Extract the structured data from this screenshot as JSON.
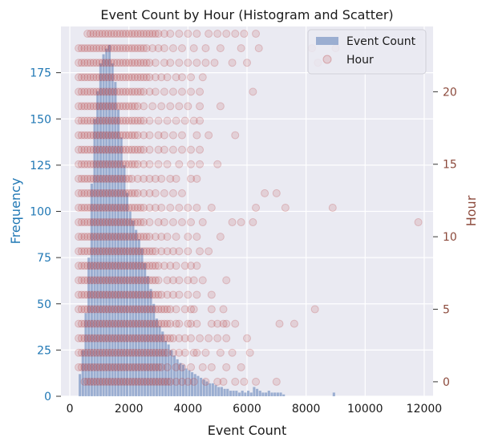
{
  "chart_data": {
    "type": "bar+scatter",
    "title": "Event Count by Hour (Histogram and Scatter)",
    "xlabel": "Event Count",
    "ylabel_left": "Frequency",
    "ylabel_right": "Hour",
    "xlim": [
      -300,
      12300
    ],
    "ylim_left": [
      0,
      200
    ],
    "ylim_right": [
      -1,
      24.5
    ],
    "x_ticks": [
      0,
      2000,
      4000,
      6000,
      8000,
      10000,
      12000
    ],
    "x_tick_labels": [
      "0",
      "2000",
      "4000",
      "6000",
      "8000",
      "10000",
      "12000"
    ],
    "y_left_ticks": [
      0,
      25,
      50,
      75,
      100,
      125,
      150,
      175
    ],
    "y_left_tick_labels": [
      "0",
      "25",
      "50",
      "75",
      "100",
      "125",
      "150",
      "175"
    ],
    "y_right_ticks": [
      0,
      5,
      10,
      15,
      20
    ],
    "y_right_tick_labels": [
      "0",
      "5",
      "10",
      "15",
      "20"
    ],
    "grid": true,
    "legend": {
      "position": "top-right",
      "entries": [
        {
          "label": "Event Count",
          "kind": "bar"
        },
        {
          "label": "Hour",
          "kind": "scatter"
        }
      ]
    },
    "histogram": {
      "name": "Event Count",
      "bin_width": 100,
      "bin_starts": [
        300,
        400,
        500,
        600,
        700,
        800,
        900,
        1000,
        1100,
        1200,
        1300,
        1400,
        1500,
        1600,
        1700,
        1800,
        1900,
        2000,
        2100,
        2200,
        2300,
        2400,
        2500,
        2600,
        2700,
        2800,
        2900,
        3000,
        3100,
        3200,
        3300,
        3400,
        3500,
        3600,
        3700,
        3800,
        3900,
        4000,
        4100,
        4200,
        4300,
        4400,
        4500,
        4600,
        4700,
        4800,
        4900,
        5000,
        5100,
        5200,
        5300,
        5400,
        5500,
        5600,
        5700,
        5800,
        5900,
        6000,
        6100,
        6200,
        6300,
        6400,
        6500,
        6600,
        6700,
        6800,
        6900,
        7000,
        7100,
        7200,
        8900
      ],
      "counts": [
        12,
        25,
        45,
        75,
        115,
        150,
        165,
        180,
        185,
        188,
        190,
        180,
        170,
        155,
        140,
        125,
        110,
        100,
        95,
        90,
        85,
        80,
        72,
        65,
        58,
        50,
        42,
        38,
        35,
        30,
        28,
        25,
        22,
        20,
        18,
        17,
        15,
        14,
        13,
        12,
        11,
        10,
        9,
        8,
        7,
        7,
        6,
        5,
        5,
        4,
        4,
        3,
        3,
        3,
        2,
        3,
        2,
        3,
        2,
        5,
        4,
        3,
        2,
        2,
        3,
        2,
        2,
        2,
        2,
        1,
        2
      ]
    },
    "scatter": {
      "name": "Hour",
      "rows": [
        {
          "hour": 0,
          "x_min": 500,
          "x_max": 3300,
          "extra": [
            3400,
            3600,
            3800,
            4000,
            4200,
            4600,
            5000,
            5200,
            5600,
            5900,
            6300,
            7000
          ]
        },
        {
          "hour": 1,
          "x_min": 300,
          "x_max": 3100,
          "extra": [
            3300,
            3600,
            3800,
            4100,
            4500,
            4800,
            5300,
            5800
          ]
        },
        {
          "hour": 2,
          "x_min": 300,
          "x_max": 3200,
          "extra": [
            3300,
            3500,
            3700,
            3900,
            4200,
            4300,
            4600,
            5100,
            5500,
            6100
          ]
        },
        {
          "hour": 3,
          "x_min": 300,
          "x_max": 3500,
          "extra": [
            3700,
            3900,
            4100,
            4400,
            4700,
            5000,
            5300,
            6000
          ]
        },
        {
          "hour": 4,
          "x_min": 300,
          "x_max": 3300,
          "extra": [
            3400,
            3600,
            3700,
            4000,
            4100,
            4300,
            4800,
            5000,
            5200,
            5300,
            5600,
            7100,
            7600
          ]
        },
        {
          "hour": 5,
          "x_min": 300,
          "x_max": 3200,
          "extra": [
            3300,
            3400,
            3600,
            3900,
            4100,
            4200,
            4800,
            5200,
            8300
          ]
        },
        {
          "hour": 6,
          "x_min": 300,
          "x_max": 3100,
          "extra": [
            3300,
            3500,
            3700,
            4000,
            4300,
            4800
          ]
        },
        {
          "hour": 7,
          "x_min": 300,
          "x_max": 3000,
          "extra": [
            3300,
            3500,
            3700,
            4000,
            4200,
            4500,
            5300
          ]
        },
        {
          "hour": 8,
          "x_min": 300,
          "x_max": 2900,
          "extra": [
            3000,
            3200,
            3400,
            3600,
            3900,
            4100,
            4300
          ]
        },
        {
          "hour": 9,
          "x_min": 300,
          "x_max": 2900,
          "extra": [
            3100,
            3300,
            3500,
            3700,
            4000,
            4400,
            4700
          ]
        },
        {
          "hour": 10,
          "x_min": 300,
          "x_max": 2700,
          "extra": [
            2900,
            3100,
            3300,
            3600,
            4000,
            4300,
            5100
          ]
        },
        {
          "hour": 11,
          "x_min": 300,
          "x_max": 2500,
          "extra": [
            2700,
            3000,
            3200,
            3500,
            3800,
            4100,
            4500,
            5500,
            5800,
            6200,
            11800
          ]
        },
        {
          "hour": 12,
          "x_min": 300,
          "x_max": 2500,
          "extra": [
            2700,
            2900,
            3100,
            3400,
            3700,
            4000,
            4300,
            4800,
            6300,
            7300,
            8900
          ]
        },
        {
          "hour": 13,
          "x_min": 300,
          "x_max": 2300,
          "extra": [
            2500,
            2700,
            2900,
            3200,
            3500,
            3800,
            6600,
            7000
          ]
        },
        {
          "hour": 14,
          "x_min": 300,
          "x_max": 2100,
          "extra": [
            2300,
            2500,
            2700,
            2900,
            3100,
            3400,
            3600,
            4100,
            4300
          ]
        },
        {
          "hour": 15,
          "x_min": 300,
          "x_max": 2300,
          "extra": [
            2500,
            2700,
            3000,
            3300,
            3700,
            4100,
            4400,
            5000
          ]
        },
        {
          "hour": 16,
          "x_min": 300,
          "x_max": 2500,
          "extra": [
            2700,
            3000,
            3200,
            3500,
            3800,
            4100,
            4400
          ]
        },
        {
          "hour": 17,
          "x_min": 300,
          "x_max": 2300,
          "extra": [
            2500,
            2700,
            3000,
            3200,
            3500,
            3800,
            4300,
            4700,
            5600
          ]
        },
        {
          "hour": 18,
          "x_min": 300,
          "x_max": 2500,
          "extra": [
            2700,
            3000,
            3300,
            3600,
            3900,
            4200,
            4400
          ]
        },
        {
          "hour": 19,
          "x_min": 300,
          "x_max": 2300,
          "extra": [
            2500,
            2800,
            3100,
            3400,
            3700,
            4000,
            4400,
            5100
          ]
        },
        {
          "hour": 20,
          "x_min": 300,
          "x_max": 2500,
          "extra": [
            2700,
            2900,
            3200,
            3500,
            3800,
            4100,
            4400,
            6200
          ]
        },
        {
          "hour": 21,
          "x_min": 300,
          "x_max": 2700,
          "extra": [
            2900,
            3100,
            3300,
            3600,
            3800,
            4100,
            4500
          ]
        },
        {
          "hour": 22,
          "x_min": 300,
          "x_max": 2700,
          "extra": [
            2900,
            3200,
            3400,
            3700,
            4000,
            4300,
            4600,
            4900,
            5500,
            6000,
            8400
          ]
        },
        {
          "hour": 23,
          "x_min": 300,
          "x_max": 2600,
          "extra": [
            2800,
            3000,
            3200,
            3500,
            3800,
            4200,
            4600,
            5100,
            5800,
            6400,
            8200,
            9000
          ]
        },
        {
          "hour": 24,
          "x_min": 600,
          "x_max": 3000,
          "extra": [
            3200,
            3400,
            3700,
            4000,
            4300,
            4700,
            5000,
            5300,
            5600,
            5900,
            6300
          ]
        }
      ],
      "step": 100
    },
    "colors": {
      "bar": "#4c72b0",
      "point": "#b22a2a",
      "left_axis": "#1f77b4",
      "right_axis": "#8c4a3c",
      "plot_bg": "#eaeaf2",
      "grid": "#ffffff"
    }
  }
}
